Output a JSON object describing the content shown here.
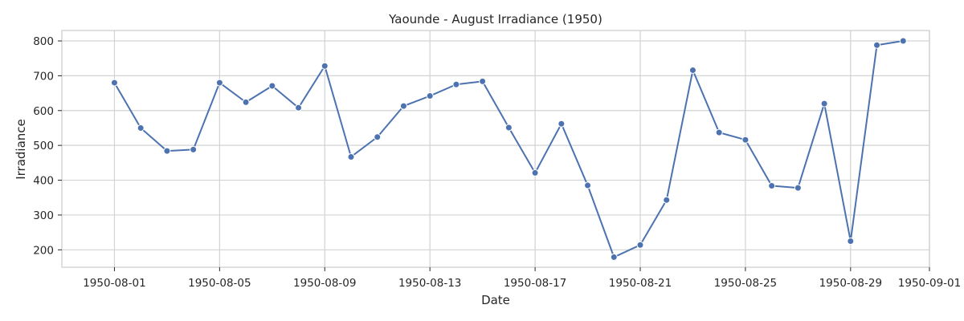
{
  "chart_data": {
    "type": "line",
    "title": "Yaounde - August Irradiance (1950)",
    "xlabel": "Date",
    "ylabel": "Irradiance",
    "x": [
      "1950-08-01",
      "1950-08-02",
      "1950-08-03",
      "1950-08-04",
      "1950-08-05",
      "1950-08-06",
      "1950-08-07",
      "1950-08-08",
      "1950-08-09",
      "1950-08-10",
      "1950-08-11",
      "1950-08-12",
      "1950-08-13",
      "1950-08-14",
      "1950-08-15",
      "1950-08-16",
      "1950-08-17",
      "1950-08-18",
      "1950-08-19",
      "1950-08-20",
      "1950-08-21",
      "1950-08-22",
      "1950-08-23",
      "1950-08-24",
      "1950-08-25",
      "1950-08-26",
      "1950-08-27",
      "1950-08-28",
      "1950-08-29",
      "1950-08-30",
      "1950-08-31"
    ],
    "series": [
      {
        "values": [
          680,
          550,
          484,
          488,
          680,
          624,
          671,
          608,
          728,
          467,
          524,
          613,
          642,
          675,
          684,
          551,
          421,
          562,
          385,
          179,
          214,
          343,
          716,
          537,
          516,
          384,
          378,
          620,
          225,
          788,
          800
        ],
        "color": "#4c72b0"
      }
    ],
    "xlim": [
      "1950-07-30",
      "1950-09-01"
    ],
    "ylim": [
      150,
      830
    ],
    "xticks": [
      "1950-08-01",
      "1950-08-05",
      "1950-08-09",
      "1950-08-13",
      "1950-08-17",
      "1950-08-21",
      "1950-08-25",
      "1950-08-29",
      "1950-09-01"
    ],
    "yticks": [
      200,
      300,
      400,
      500,
      600,
      700,
      800
    ],
    "grid": true,
    "legend": "none"
  }
}
